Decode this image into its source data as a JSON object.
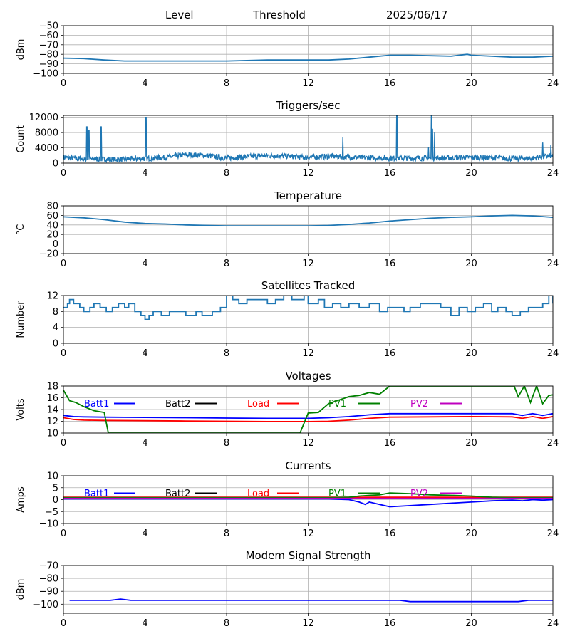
{
  "header": {
    "level": "Level",
    "threshold": "Threshold",
    "date": "2025/06/17"
  },
  "colors": {
    "mpl_blue": "#1f77b4",
    "blue": "#0000ff",
    "black": "#000000",
    "red": "#ff0000",
    "green": "#008000",
    "magenta": "#bf00bf",
    "grid": "#b0b0b0"
  },
  "chart_data": [
    {
      "id": "level",
      "type": "line",
      "title": "",
      "ylabel": "dBm",
      "ylim": [
        -100,
        -50
      ],
      "yticks": [
        -100,
        -90,
        -80,
        -70,
        -60,
        -50
      ],
      "xlim": [
        0,
        24
      ],
      "xticks": [
        0,
        4,
        8,
        12,
        16,
        20,
        24
      ],
      "grid": true,
      "series": [
        {
          "color": "#1f77b4",
          "x": [
            0,
            1,
            2,
            3,
            4,
            5,
            6,
            7,
            8,
            9,
            10,
            11,
            12,
            13,
            14,
            15,
            16,
            17,
            18,
            19,
            19.8,
            20,
            21,
            22,
            23,
            24
          ],
          "y": [
            -84,
            -84.5,
            -86,
            -87,
            -87,
            -87,
            -87,
            -87,
            -87,
            -86.5,
            -86,
            -86,
            -86,
            -86,
            -85,
            -83,
            -81,
            -81,
            -81.5,
            -82,
            -80,
            -81,
            -82,
            -83,
            -83,
            -82
          ]
        }
      ]
    },
    {
      "id": "triggers",
      "type": "line",
      "title": "Triggers/sec",
      "ylabel": "Count",
      "ylim": [
        0,
        12500
      ],
      "yticks": [
        0,
        4000,
        8000,
        12000
      ],
      "xlim": [
        0,
        24
      ],
      "xticks": [
        0,
        4,
        8,
        12,
        16,
        20,
        24
      ],
      "grid": true,
      "baseline": [
        [
          0,
          1500
        ],
        [
          1,
          1100
        ],
        [
          2,
          1000
        ],
        [
          3,
          1000
        ],
        [
          4,
          1200
        ],
        [
          5,
          1500
        ],
        [
          6,
          2200
        ],
        [
          7,
          2000
        ],
        [
          8,
          1300
        ],
        [
          9,
          1700
        ],
        [
          10,
          2000
        ],
        [
          11,
          1800
        ],
        [
          12,
          1500
        ],
        [
          13,
          1800
        ],
        [
          14,
          1600
        ],
        [
          15,
          1400
        ],
        [
          16,
          1300
        ],
        [
          17,
          1300
        ],
        [
          18,
          1300
        ],
        [
          19,
          1400
        ],
        [
          20,
          1500
        ],
        [
          21,
          1400
        ],
        [
          22,
          1200
        ],
        [
          23,
          1300
        ],
        [
          24,
          2000
        ]
      ],
      "spikes": [
        [
          1.15,
          9500
        ],
        [
          1.25,
          8500
        ],
        [
          1.85,
          9500
        ],
        [
          4.05,
          12000
        ],
        [
          13.7,
          6800
        ],
        [
          16.35,
          12500
        ],
        [
          17.9,
          4200
        ],
        [
          18.05,
          12500
        ],
        [
          18.1,
          9000
        ],
        [
          18.2,
          8000
        ],
        [
          23.5,
          5400
        ],
        [
          23.9,
          4800
        ]
      ],
      "series": [
        {
          "color": "#1f77b4"
        }
      ]
    },
    {
      "id": "temperature",
      "type": "line",
      "title": "Temperature",
      "ylabel": "°C",
      "ylim": [
        -20,
        80
      ],
      "yticks": [
        -20,
        0,
        20,
        40,
        60,
        80
      ],
      "xlim": [
        0,
        24
      ],
      "xticks": [
        0,
        4,
        8,
        12,
        16,
        20,
        24
      ],
      "grid": true,
      "series": [
        {
          "color": "#1f77b4",
          "x": [
            0,
            1,
            2,
            3,
            4,
            5,
            6,
            7,
            8,
            9,
            10,
            11,
            12,
            13,
            14,
            15,
            16,
            17,
            18,
            19,
            20,
            21,
            22,
            23,
            24
          ],
          "y": [
            57,
            55,
            51,
            46,
            43,
            42,
            40,
            39,
            38,
            38,
            38,
            38,
            38,
            39,
            41,
            44,
            48,
            51,
            54,
            56,
            57,
            59,
            60,
            59,
            56
          ]
        }
      ]
    },
    {
      "id": "satellites",
      "type": "line",
      "step": true,
      "title": "Satellites Tracked",
      "ylabel": "Number",
      "ylim": [
        0,
        12
      ],
      "yticks": [
        0,
        4,
        8,
        12
      ],
      "xlim": [
        0,
        24
      ],
      "xticks": [
        0,
        4,
        8,
        12,
        16,
        20,
        24
      ],
      "grid": true,
      "series": [
        {
          "color": "#1f77b4",
          "x": [
            0,
            0.2,
            0.3,
            0.5,
            0.8,
            1.0,
            1.3,
            1.5,
            1.8,
            2.1,
            2.4,
            2.7,
            3.0,
            3.2,
            3.5,
            3.8,
            4.0,
            4.2,
            4.4,
            4.8,
            5.2,
            5.5,
            6.0,
            6.5,
            6.8,
            7.3,
            7.7,
            8.0,
            8.3,
            8.6,
            9.0,
            9.5,
            10.0,
            10.4,
            10.8,
            11.2,
            11.5,
            11.8,
            12.0,
            12.5,
            12.8,
            13.2,
            13.6,
            14.0,
            14.5,
            15.0,
            15.5,
            15.9,
            16.3,
            16.7,
            17.0,
            17.5,
            18.0,
            18.5,
            19.0,
            19.4,
            19.8,
            20.2,
            20.6,
            21.0,
            21.3,
            21.7,
            22.0,
            22.4,
            22.8,
            23.2,
            23.5,
            23.8,
            24.0
          ],
          "y": [
            9,
            10,
            11,
            10,
            9,
            8,
            9,
            10,
            9,
            8,
            9,
            10,
            9,
            10,
            8,
            7,
            6,
            7,
            8,
            7,
            8,
            8,
            7,
            8,
            7,
            8,
            9,
            12,
            11,
            10,
            11,
            11,
            10,
            11,
            12,
            11,
            11,
            12,
            10,
            11,
            9,
            10,
            9,
            10,
            9,
            10,
            8,
            9,
            9,
            8,
            9,
            10,
            10,
            9,
            7,
            9,
            8,
            9,
            10,
            8,
            9,
            8,
            7,
            8,
            9,
            9,
            10,
            12,
            10
          ]
        }
      ]
    },
    {
      "id": "voltages",
      "type": "line",
      "title": "Voltages",
      "ylabel": "Volts",
      "ylim": [
        10,
        18
      ],
      "yticks": [
        10,
        12,
        14,
        16,
        18
      ],
      "xlim": [
        0,
        24
      ],
      "xticks": [
        0,
        4,
        8,
        12,
        16,
        20,
        24
      ],
      "grid": true,
      "legend": [
        "Batt1",
        "Batt2",
        "Load",
        "PV1",
        "PV2"
      ],
      "series": [
        {
          "name": "Batt1",
          "color": "#0000ff",
          "x": [
            0,
            0.5,
            1,
            2,
            4,
            6,
            8,
            10,
            12,
            13,
            14,
            15,
            16,
            18,
            20,
            22,
            22.5,
            23,
            23.5,
            24
          ],
          "y": [
            13.0,
            12.8,
            12.75,
            12.7,
            12.65,
            12.6,
            12.55,
            12.5,
            12.5,
            12.6,
            12.8,
            13.1,
            13.3,
            13.3,
            13.3,
            13.3,
            13.0,
            13.3,
            13.0,
            13.3
          ]
        },
        {
          "name": "Load",
          "color": "#ff0000",
          "x": [
            0,
            0.5,
            1,
            2,
            4,
            6,
            8,
            10,
            12,
            13,
            14,
            15,
            16,
            18,
            20,
            22,
            22.5,
            23,
            23.5,
            24
          ],
          "y": [
            12.6,
            12.3,
            12.2,
            12.15,
            12.1,
            12.05,
            12.0,
            11.95,
            11.95,
            12.0,
            12.2,
            12.5,
            12.7,
            12.75,
            12.8,
            12.75,
            12.5,
            12.8,
            12.5,
            12.8
          ]
        },
        {
          "name": "PV1",
          "color": "#008000",
          "x": [
            0,
            0.3,
            0.6,
            1.0,
            1.5,
            2.0,
            2.2,
            11.6,
            12,
            12.5,
            13,
            13.5,
            14,
            14.5,
            15,
            15.5,
            16,
            16.1,
            22.1,
            22.3,
            22.6,
            22.9,
            23.2,
            23.5,
            23.8,
            24
          ],
          "y": [
            17.3,
            15.5,
            15.2,
            14.5,
            13.8,
            13.5,
            10.0,
            10.0,
            13.4,
            13.5,
            15.0,
            15.6,
            16.2,
            16.4,
            16.9,
            16.6,
            18.0,
            18.0,
            18.0,
            16.2,
            18.0,
            15.2,
            18.0,
            15.0,
            16.4,
            16.5
          ]
        }
      ]
    },
    {
      "id": "currents",
      "type": "line",
      "title": "Currents",
      "ylabel": "Amps",
      "ylim": [
        -10,
        10
      ],
      "yticks": [
        -10,
        -5,
        0,
        5,
        10
      ],
      "xlim": [
        0,
        24
      ],
      "xticks": [
        0,
        4,
        8,
        12,
        16,
        20,
        24
      ],
      "grid": true,
      "legend": [
        "Batt1",
        "Batt2",
        "Load",
        "PV1",
        "PV2"
      ],
      "series": [
        {
          "name": "Batt1",
          "color": "#0000ff",
          "x": [
            0,
            2,
            4,
            6,
            8,
            10,
            12,
            13,
            14,
            14.5,
            14.8,
            15,
            15.5,
            16,
            17,
            18,
            19,
            20,
            21,
            22,
            22.5,
            23,
            23.5,
            24
          ],
          "y": [
            0.3,
            0.3,
            0.3,
            0.3,
            0.3,
            0.3,
            0.3,
            0.3,
            0,
            -1,
            -2,
            -1,
            -2,
            -3,
            -2.5,
            -2,
            -1.5,
            -1,
            -0.5,
            -0.2,
            -0.5,
            0,
            -0.2,
            0
          ]
        },
        {
          "name": "Load",
          "color": "#ff0000",
          "x": [
            0,
            4,
            8,
            12,
            16,
            20,
            24
          ],
          "y": [
            1,
            1,
            1,
            1,
            1,
            1,
            1
          ]
        },
        {
          "name": "PV1",
          "color": "#008000",
          "x": [
            0,
            4,
            8,
            12,
            13,
            14,
            14.5,
            15,
            15.5,
            16,
            17,
            18,
            19,
            20,
            21,
            22,
            23,
            24
          ],
          "y": [
            0.8,
            0.8,
            0.8,
            0.8,
            0.8,
            1,
            1.5,
            1.8,
            2,
            2.8,
            2.5,
            2,
            1.8,
            1.5,
            1,
            0.8,
            0.8,
            0.8
          ]
        },
        {
          "name": "PV2",
          "color": "#bf00bf",
          "x": [
            0,
            4,
            8,
            12,
            16,
            20,
            24
          ],
          "y": [
            0.5,
            0.5,
            0.5,
            0.5,
            0.5,
            0.5,
            0.5
          ]
        }
      ]
    },
    {
      "id": "modem",
      "type": "line",
      "title": "Modem Signal Strength",
      "ylabel": "dBm",
      "ylim": [
        -107,
        -70
      ],
      "yticks": [
        -100,
        -90,
        -80,
        -70
      ],
      "xlim": [
        0,
        24
      ],
      "xticks": [
        0,
        4,
        8,
        12,
        16,
        20,
        24
      ],
      "grid": true,
      "series": [
        {
          "color": "#0000ff",
          "x": [
            0.3,
            2.3,
            2.8,
            3.3,
            16.5,
            17,
            22.3,
            22.8,
            24
          ],
          "y": [
            -97,
            -97,
            -96,
            -97,
            -97,
            -98,
            -98,
            -97,
            -97
          ]
        }
      ]
    }
  ]
}
